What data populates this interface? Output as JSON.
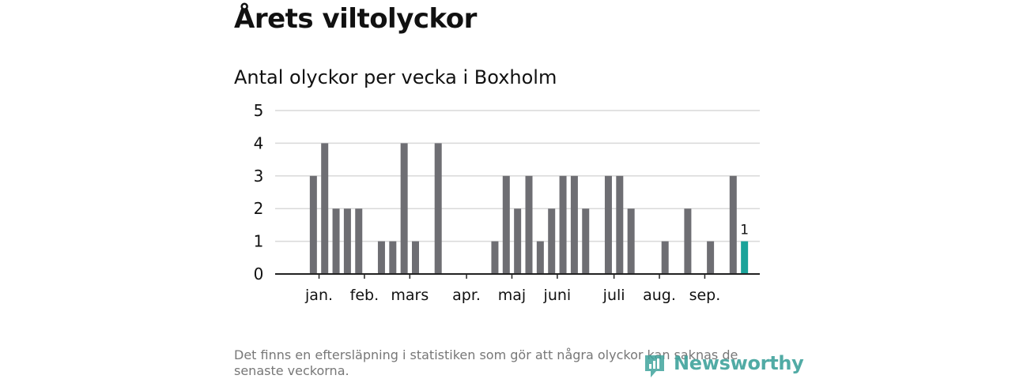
{
  "header": {
    "title": "Årets viltolyckor",
    "subtitle": "Antal olyckor per vecka i Boxholm"
  },
  "footer": {
    "note": "Det finns en eftersläpning i statistiken som gör att några olyckor kan saknas de senaste veckorna.",
    "brand": "Newsworthy"
  },
  "colors": {
    "bar": "#6e6e73",
    "highlight": "#1aa39a",
    "grid": "#d9d9d9",
    "axis": "#222222",
    "brand": "#3fa39c"
  },
  "chart_data": {
    "type": "bar",
    "title": "Antal olyckor per vecka i Boxholm",
    "xlabel": "",
    "ylabel": "",
    "ylim": [
      0,
      5
    ],
    "yticks": [
      0,
      1,
      2,
      3,
      4,
      5
    ],
    "weeks": [
      1,
      2,
      3,
      4,
      5,
      6,
      7,
      8,
      9,
      10,
      11,
      12,
      13,
      14,
      15,
      16,
      17,
      18,
      19,
      20,
      21,
      22,
      23,
      24,
      25,
      26,
      27,
      28,
      29,
      30,
      31,
      32,
      33,
      34,
      35,
      36,
      37,
      38,
      39,
      40,
      41
    ],
    "values": [
      0,
      3,
      4,
      2,
      2,
      2,
      0,
      1,
      1,
      4,
      1,
      0,
      4,
      0,
      0,
      0,
      0,
      1,
      3,
      2,
      3,
      1,
      2,
      3,
      3,
      2,
      0,
      3,
      3,
      2,
      0,
      0,
      1,
      0,
      2,
      0,
      1,
      0,
      3,
      1,
      0
    ],
    "highlight_week": 40,
    "highlight_label": "1",
    "month_labels": [
      {
        "label": "jan.",
        "week": 2.5
      },
      {
        "label": "feb.",
        "week": 6.5
      },
      {
        "label": "mars",
        "week": 10.5
      },
      {
        "label": "apr.",
        "week": 15.5
      },
      {
        "label": "maj",
        "week": 19.5
      },
      {
        "label": "juni",
        "week": 23.5
      },
      {
        "label": "juli",
        "week": 28.5
      },
      {
        "label": "aug.",
        "week": 32.5
      },
      {
        "label": "sep.",
        "week": 36.5
      }
    ]
  }
}
